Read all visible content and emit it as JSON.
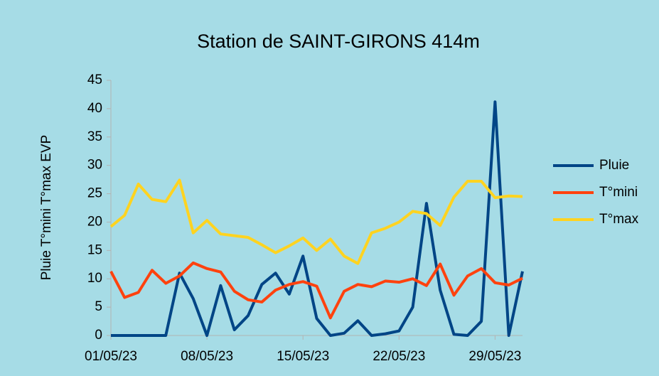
{
  "chart_data": {
    "type": "line",
    "title": "Station de SAINT-GIRONS 414m",
    "y_label": "Pluie T°mini T°max EVP",
    "categories": [
      "01/05/23",
      null,
      null,
      null,
      null,
      null,
      null,
      "08/05/23",
      null,
      null,
      null,
      null,
      null,
      null,
      "15/05/23",
      null,
      null,
      null,
      null,
      null,
      null,
      "22/05/23",
      null,
      null,
      null,
      null,
      null,
      null,
      "29/05/23",
      null,
      null
    ],
    "series": [
      {
        "name": "Pluie",
        "color": "#004586",
        "values": [
          0,
          0,
          0,
          0,
          0,
          11,
          6.5,
          0,
          8.8,
          1,
          3.5,
          9,
          11,
          7.3,
          14,
          3,
          0,
          0.4,
          2.6,
          0,
          0.3,
          0.8,
          5,
          23.3,
          8,
          0.2,
          0,
          2.5,
          41.2,
          0,
          11.3
        ]
      },
      {
        "name": "T°mini",
        "color": "#ff420e",
        "values": [
          11.3,
          6.7,
          7.6,
          11.5,
          9.2,
          10.5,
          12.8,
          11.8,
          11.2,
          7.8,
          6.3,
          5.9,
          8,
          9,
          9.5,
          8.7,
          3.1,
          7.8,
          9,
          8.6,
          9.6,
          9.4,
          10,
          8.8,
          12.6,
          7.1,
          10.5,
          11.8,
          9.3,
          8.9,
          10.1
        ]
      },
      {
        "name": "T°max",
        "color": "#ffd320",
        "values": [
          19.2,
          21.2,
          26.7,
          24,
          23.6,
          27.4,
          18.1,
          20.3,
          17.9,
          17.6,
          17.3,
          16,
          14.6,
          15.8,
          17.2,
          15,
          17,
          14,
          12.7,
          18.1,
          18.9,
          20,
          21.9,
          21.5,
          19.4,
          24.4,
          27.2,
          27.2,
          24.3,
          24.6,
          24.5
        ]
      }
    ],
    "ylim": [
      0,
      45
    ],
    "yticks": [
      0,
      5,
      10,
      15,
      20,
      25,
      30,
      35,
      40,
      45
    ],
    "grid": false,
    "legend": "right"
  }
}
